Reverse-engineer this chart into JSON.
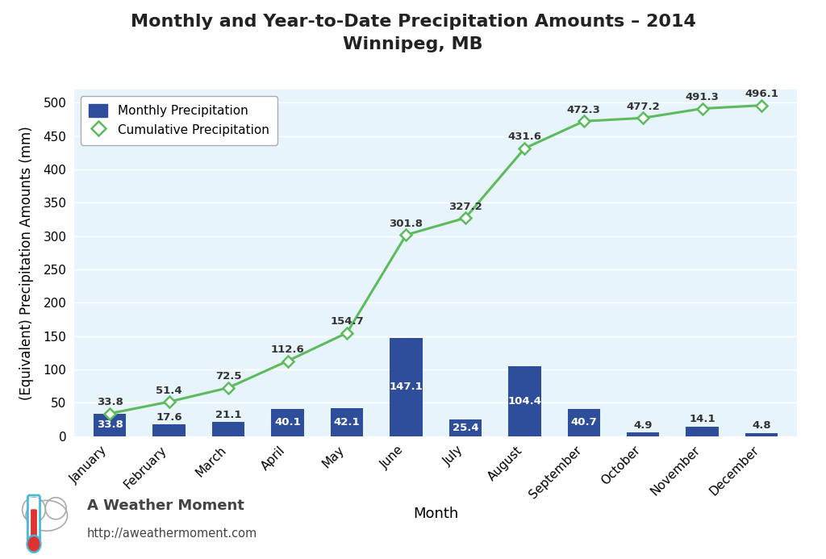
{
  "months": [
    "January",
    "February",
    "March",
    "April",
    "May",
    "June",
    "July",
    "August",
    "September",
    "October",
    "November",
    "December"
  ],
  "monthly": [
    33.8,
    17.6,
    21.1,
    40.1,
    42.1,
    147.1,
    25.4,
    104.4,
    40.7,
    4.9,
    14.1,
    4.8
  ],
  "cumulative": [
    33.8,
    51.4,
    72.5,
    112.6,
    154.7,
    301.8,
    327.2,
    431.6,
    472.3,
    477.2,
    491.3,
    496.1
  ],
  "bar_color": "#2E4D9B",
  "line_color": "#5DBB5D",
  "marker_face": "#ffffff",
  "marker_edge": "#5DBB5D",
  "background_color": "#ffffff",
  "plot_bg": "#E8F4FB",
  "title_line1": "Monthly and Year-to-Date Precipitation Amounts – 2014",
  "title_line2": "Winnipeg, MB",
  "ylabel": "(Equivalent) Precipitation Amounts (mm)",
  "xlabel": "Month",
  "ylim": [
    0,
    520
  ],
  "yticks": [
    0,
    50,
    100,
    150,
    200,
    250,
    300,
    350,
    400,
    450,
    500
  ],
  "legend_bar_label": "Monthly Precipitation",
  "legend_line_label": "Cumulative Precipitation",
  "watermark_name": "A Weather Moment",
  "watermark_url": "http://aweathermoment.com",
  "title_fontsize": 16,
  "axis_label_fontsize": 12,
  "tick_fontsize": 11,
  "bar_annotation_fontsize": 9.5,
  "line_annotation_fontsize": 9.5,
  "legend_fontsize": 11,
  "bar_width": 0.55
}
